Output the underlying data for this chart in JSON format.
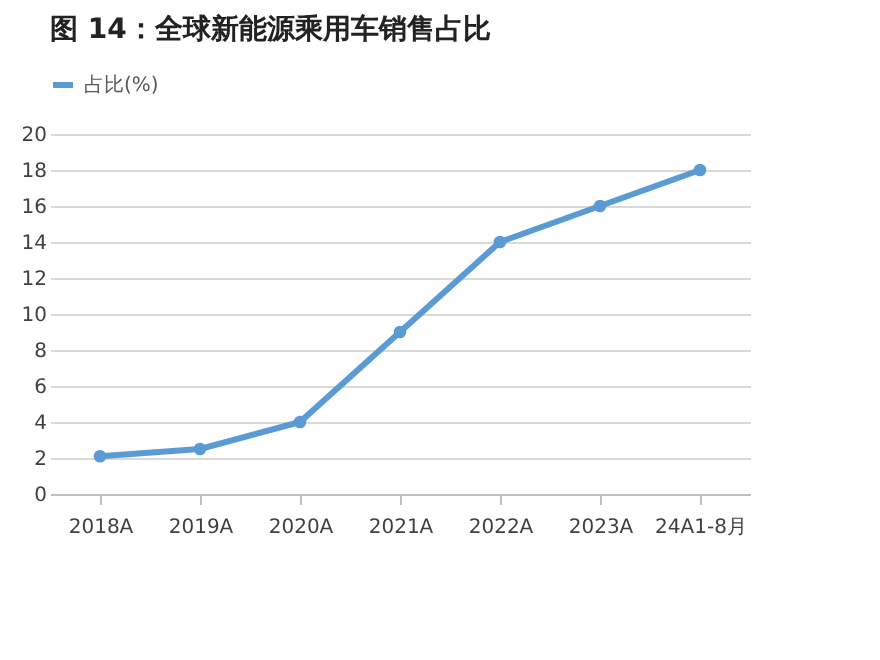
{
  "chart_data": {
    "type": "line",
    "title": "图 14：全球新能源乘用车销售占比",
    "categories": [
      "2018A",
      "2019A",
      "2020A",
      "2021A",
      "2022A",
      "2023A",
      "24A1-8月"
    ],
    "series": [
      {
        "name": "占比(%)",
        "color": "#5b9bd5",
        "values": [
          2.1,
          2.5,
          4,
          9,
          14,
          16,
          18
        ]
      }
    ],
    "ylim": [
      0,
      20
    ],
    "yticks": [
      0,
      2,
      4,
      6,
      8,
      10,
      12,
      14,
      16,
      18,
      20
    ],
    "grid": "y",
    "legend": "top",
    "marker": "circle",
    "line_style": "solid"
  }
}
